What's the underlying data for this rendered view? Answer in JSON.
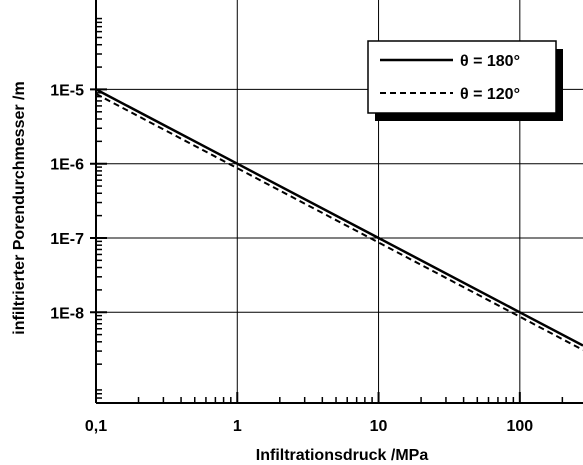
{
  "chart_data": {
    "type": "line",
    "xscale": "log",
    "yscale": "log",
    "xlim": [
      0.1,
      280
    ],
    "ylim": [
      6e-10,
      0.00016
    ],
    "grid": true,
    "legend_position": "top-right",
    "xlabel": "Infiltrationsdruck /MPa",
    "ylabel": "infiltrierter Porendurchmesser /m",
    "x_ticks": [
      {
        "value": 0.1,
        "label": "0,1"
      },
      {
        "value": 1,
        "label": "1"
      },
      {
        "value": 10,
        "label": "10"
      },
      {
        "value": 100,
        "label": "100"
      }
    ],
    "y_ticks": [
      {
        "value": 1e-05,
        "label": "1E-5"
      },
      {
        "value": 1e-06,
        "label": "1E-6"
      },
      {
        "value": 1e-07,
        "label": "1E-7"
      },
      {
        "value": 1e-08,
        "label": "1E-8"
      }
    ],
    "series": [
      {
        "name": "θ = 180°",
        "style": "solid",
        "color": "#000000",
        "x": [
          0.1,
          1,
          10,
          100,
          280
        ],
        "y": [
          1e-05,
          1e-06,
          1e-07,
          1e-08,
          3.57e-09
        ]
      },
      {
        "name": "θ = 120°",
        "style": "dashed",
        "color": "#000000",
        "x": [
          0.1,
          1,
          10,
          100,
          280
        ],
        "y": [
          8.7e-06,
          8.7e-07,
          8.7e-08,
          8.7e-09,
          3.1e-09
        ]
      }
    ]
  }
}
